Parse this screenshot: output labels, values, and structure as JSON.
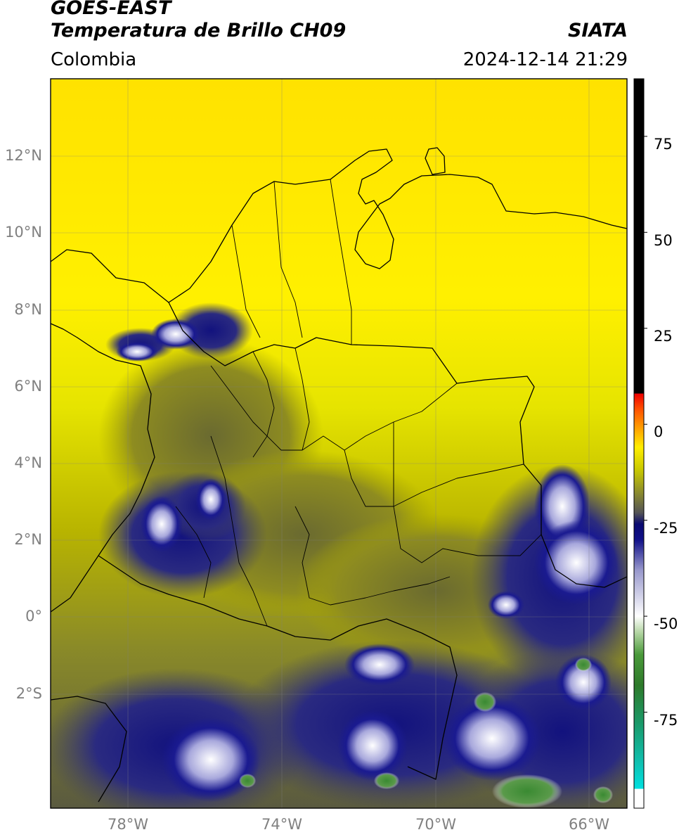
{
  "title": {
    "satellite": "GOES-EAST",
    "product": "Temperatura de Brillo CH09",
    "region": "Colombia",
    "source": "SIATA",
    "datetime": "2024-12-14 21:29"
  },
  "map": {
    "lon_range": [
      -80,
      -65
    ],
    "lat_range": [
      -5,
      14
    ],
    "lat_ticks": [
      {
        "value": 12,
        "label": "12°N"
      },
      {
        "value": 10,
        "label": "10°N"
      },
      {
        "value": 8,
        "label": "8°N"
      },
      {
        "value": 6,
        "label": "6°N"
      },
      {
        "value": 4,
        "label": "4°N"
      },
      {
        "value": 2,
        "label": "2°N"
      },
      {
        "value": 0,
        "label": "0°"
      },
      {
        "value": -2,
        "label": "2°S"
      }
    ],
    "lon_ticks": [
      {
        "value": -78,
        "label": "78°W"
      },
      {
        "value": -74,
        "label": "74°W"
      },
      {
        "value": -70,
        "label": "70°W"
      },
      {
        "value": -66,
        "label": "66°W"
      }
    ],
    "grid": true
  },
  "colorbar": {
    "range": [
      -100,
      90
    ],
    "ticks": [
      {
        "value": 75,
        "label": "75"
      },
      {
        "value": 50,
        "label": "50"
      },
      {
        "value": 25,
        "label": "25"
      },
      {
        "value": 0,
        "label": "0"
      },
      {
        "value": -25,
        "label": "-25"
      },
      {
        "value": -50,
        "label": "-50"
      },
      {
        "value": -75,
        "label": "-75"
      }
    ],
    "stops": [
      {
        "value": -100,
        "color": "#ffffff"
      },
      {
        "value": -95,
        "color": "#ffffff"
      },
      {
        "value": -95,
        "color": "#00e0e0"
      },
      {
        "value": -88,
        "color": "#10c0b0"
      },
      {
        "value": -78,
        "color": "#1a9a6a"
      },
      {
        "value": -68,
        "color": "#2e7a2a"
      },
      {
        "value": -60,
        "color": "#4a9a3a"
      },
      {
        "value": -54,
        "color": "#b8d8a8"
      },
      {
        "value": -50,
        "color": "#ffffff"
      },
      {
        "value": -38,
        "color": "#9898cc"
      },
      {
        "value": -30,
        "color": "#101088"
      },
      {
        "value": -26,
        "color": "#0a0a70"
      },
      {
        "value": -23,
        "color": "#555555"
      },
      {
        "value": -12,
        "color": "#c8c800"
      },
      {
        "value": -6,
        "color": "#ffee00"
      },
      {
        "value": -2,
        "color": "#ffb000"
      },
      {
        "value": 4,
        "color": "#ff5000"
      },
      {
        "value": 8,
        "color": "#ee0000"
      },
      {
        "value": 8,
        "color": "#000000"
      },
      {
        "value": 90,
        "color": "#000000"
      }
    ]
  }
}
